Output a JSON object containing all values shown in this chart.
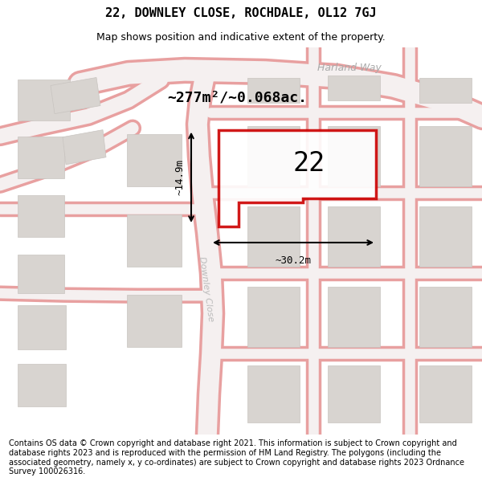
{
  "title": "22, DOWNLEY CLOSE, ROCHDALE, OL12 7GJ",
  "subtitle": "Map shows position and indicative extent of the property.",
  "footer": "Contains OS data © Crown copyright and database right 2021. This information is subject to Crown copyright and database rights 2023 and is reproduced with the permission of HM Land Registry. The polygons (including the associated geometry, namely x, y co-ordinates) are subject to Crown copyright and database rights 2023 Ordnance Survey 100026316.",
  "map_bg": "#f5f3f1",
  "road_color": "#e8a0a0",
  "road_fill": "#f5f0f0",
  "building_fill": "#d8d4d0",
  "building_edge": "#c8c4c0",
  "plot_color": "#cc0000",
  "label_area": "~277m²/~0.068ac.",
  "label_num": "22",
  "label_width": "~30.2m",
  "label_height": "~14.9m",
  "road_label_1": "Harland Way",
  "road_label_2": "Downley Close",
  "title_fontsize": 11,
  "subtitle_fontsize": 9,
  "footer_fontsize": 7
}
